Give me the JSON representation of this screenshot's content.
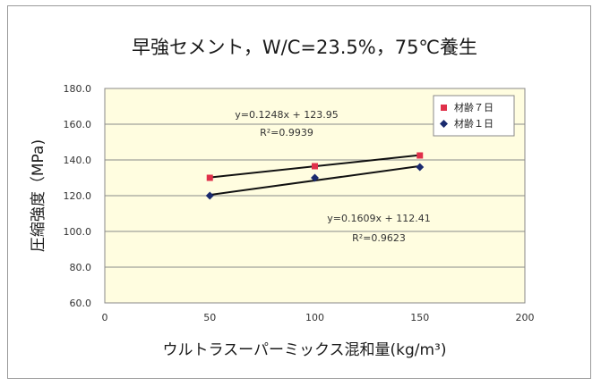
{
  "chart_data": {
    "type": "scatter",
    "title": "早強セメント，W/C=23.5%，75℃養生",
    "xlabel": "ウルトラスーパーミックス混和量(kg/m³)",
    "ylabel": "圧縮強度（MPa)",
    "xlim": [
      0,
      200
    ],
    "ylim": [
      60,
      180
    ],
    "xticks": [
      0,
      50,
      100,
      150,
      200
    ],
    "yticks": [
      60,
      80,
      100,
      120,
      140,
      160,
      180
    ],
    "xtick_labels": [
      "0",
      "50",
      "100",
      "150",
      "200"
    ],
    "ytick_labels": [
      "60.0",
      "80.0",
      "100.0",
      "120.0",
      "140.0",
      "160.0",
      "180.0"
    ],
    "grid": "horizontal",
    "legend_position": "top-right",
    "series": [
      {
        "name": "材齢７日",
        "color": "#e0304a",
        "marker": "square",
        "x": [
          50,
          100,
          150
        ],
        "y": [
          130,
          136.5,
          142.5
        ],
        "trendline": {
          "slope": 0.1248,
          "intercept": 123.95,
          "equation": "y=0.1248x + 123.95",
          "r2": "R²=0.9939"
        }
      },
      {
        "name": "材齢１日",
        "color": "#1a2a6e",
        "marker": "diamond",
        "x": [
          50,
          100,
          150
        ],
        "y": [
          120,
          130,
          136
        ],
        "trendline": {
          "slope": 0.1609,
          "intercept": 112.41,
          "equation": "y=0.1609x + 112.41",
          "r2": "R²=0.9623"
        }
      }
    ]
  }
}
